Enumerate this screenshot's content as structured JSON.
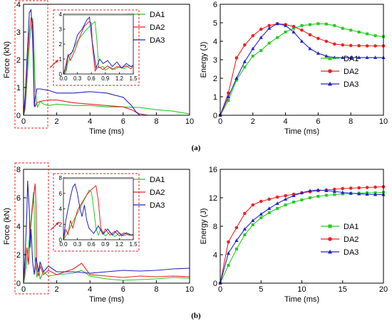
{
  "figure_labels": [
    "(a)",
    "(b)"
  ],
  "colors": {
    "DA1": "#22cc22",
    "DA2": "#ee2222",
    "DA3": "#2222cc",
    "zoom_box": "#ee2222",
    "grid": "#bbbbbb"
  },
  "chart_data": [
    {
      "id": "a-force",
      "type": "line",
      "xlabel": "Time (ms)",
      "ylabel": "Force (kN)",
      "xlim": [
        0,
        10
      ],
      "ylim": [
        0,
        4
      ],
      "xticks": [
        0,
        2,
        4,
        6,
        8,
        10
      ],
      "yticks": [
        0,
        1,
        2,
        3,
        4
      ],
      "legend": [
        "DA1",
        "DA2",
        "DA3"
      ],
      "legend_position": "top-right",
      "series": [
        {
          "name": "DA1",
          "x": [
            0,
            0.1,
            0.25,
            0.4,
            0.55,
            0.6,
            0.7,
            0.78,
            0.85,
            1.0,
            1.2,
            1.5,
            2,
            3,
            4,
            5,
            6,
            7,
            8,
            9,
            10
          ],
          "y": [
            0,
            0.2,
            1.6,
            2.9,
            3.5,
            3.0,
            1.1,
            0.5,
            0.3,
            0.5,
            0.4,
            0.35,
            0.4,
            0.35,
            0.35,
            0.3,
            0.3,
            0.28,
            0.2,
            0.15,
            0.05
          ]
        },
        {
          "name": "DA2",
          "x": [
            0,
            0.1,
            0.25,
            0.35,
            0.45,
            0.55,
            0.6,
            0.65,
            0.7,
            0.8,
            1.0,
            1.5,
            2,
            3,
            4,
            5,
            6,
            6.5,
            7,
            7.5
          ],
          "y": [
            0,
            0.4,
            2.1,
            3.0,
            3.5,
            3.4,
            2.0,
            0.6,
            0.3,
            0.45,
            0.5,
            0.55,
            0.55,
            0.45,
            0.4,
            0.35,
            0.3,
            0.2,
            0.05,
            0
          ]
        },
        {
          "name": "DA3",
          "x": [
            0,
            0.1,
            0.25,
            0.35,
            0.45,
            0.52,
            0.58,
            0.65,
            0.7,
            0.8,
            1.0,
            1.5,
            2,
            3,
            4,
            5,
            6,
            6.5,
            6.8,
            7
          ],
          "y": [
            0,
            0.7,
            2.5,
            3.7,
            3.8,
            3.2,
            2.1,
            0.3,
            0.6,
            0.95,
            0.95,
            0.9,
            0.8,
            0.8,
            0.85,
            0.8,
            0.65,
            0.35,
            0.1,
            0
          ]
        }
      ],
      "inset": {
        "xlim": [
          0,
          1.5
        ],
        "ylim": [
          0,
          4
        ],
        "xticks": [
          0.0,
          0.3,
          0.6,
          0.9,
          1.2,
          1.5
        ],
        "yticks": [
          0,
          1,
          2,
          3,
          4
        ],
        "series": [
          {
            "name": "DA1",
            "x": [
              0,
              0.05,
              0.1,
              0.2,
              0.3,
              0.4,
              0.5,
              0.6,
              0.68,
              0.72,
              0.76,
              0.85,
              0.9,
              1.0,
              1.1,
              1.2,
              1.3,
              1.4,
              1.5
            ],
            "y": [
              0,
              0.1,
              0.8,
              1.6,
              2.2,
              2.6,
              3.0,
              3.3,
              3.5,
              2.2,
              0.4,
              0.5,
              0.25,
              0.45,
              0.3,
              0.5,
              0.35,
              0.55,
              0.45
            ]
          },
          {
            "name": "DA2",
            "x": [
              0,
              0.05,
              0.1,
              0.15,
              0.25,
              0.35,
              0.45,
              0.55,
              0.6,
              0.62,
              0.68,
              0.75,
              0.85,
              0.95,
              1.05,
              1.15,
              1.25,
              1.35,
              1.45,
              1.5
            ],
            "y": [
              0,
              0.6,
              1.3,
              0.9,
              1.6,
              2.5,
              3.2,
              3.5,
              3.4,
              2.0,
              0.2,
              0.5,
              0.3,
              0.55,
              0.3,
              0.5,
              0.4,
              0.55,
              0.35,
              0.55
            ]
          },
          {
            "name": "DA3",
            "x": [
              0,
              0.05,
              0.1,
              0.2,
              0.3,
              0.4,
              0.5,
              0.56,
              0.6,
              0.65,
              0.7,
              0.78,
              0.85,
              0.95,
              1.05,
              1.15,
              1.25,
              1.35,
              1.45,
              1.5
            ],
            "y": [
              0,
              0.3,
              1.2,
              1.5,
              2.6,
              3.0,
              3.6,
              3.8,
              2.6,
              1.5,
              0.4,
              1.0,
              0.7,
              0.9,
              0.5,
              0.8,
              0.4,
              0.7,
              0.5,
              0.6
            ]
          }
        ]
      }
    },
    {
      "id": "a-energy",
      "type": "line",
      "xlabel": "Time (ms)",
      "ylabel": "Energy (J)",
      "xlim": [
        0,
        10
      ],
      "ylim": [
        0,
        6
      ],
      "xticks": [
        0,
        2,
        4,
        6,
        8,
        10
      ],
      "yticks": [
        0,
        1,
        2,
        3,
        4,
        5,
        6
      ],
      "legend": [
        "DA1",
        "DA2",
        "DA3"
      ],
      "legend_position": "lower-right",
      "series": [
        {
          "name": "DA1",
          "x": [
            0,
            0.5,
            1,
            1.5,
            2,
            2.5,
            3,
            3.5,
            4,
            4.5,
            5,
            5.5,
            6,
            6.5,
            7,
            7.5,
            8,
            8.5,
            9,
            9.5,
            10
          ],
          "y": [
            0,
            0.8,
            1.9,
            2.6,
            3.2,
            3.5,
            3.9,
            4.2,
            4.5,
            4.7,
            4.85,
            4.9,
            4.95,
            4.93,
            4.85,
            4.7,
            4.6,
            4.5,
            4.4,
            4.3,
            4.25
          ]
        },
        {
          "name": "DA2",
          "x": [
            0,
            0.5,
            1,
            1.5,
            2,
            2.5,
            3,
            3.5,
            4,
            4.5,
            5,
            5.5,
            6,
            6.5,
            7,
            7.5,
            8,
            8.5,
            9,
            9.5,
            10
          ],
          "y": [
            0,
            1.2,
            3.1,
            3.8,
            4.3,
            4.65,
            4.85,
            4.95,
            4.9,
            4.8,
            4.6,
            4.35,
            4.15,
            4.0,
            3.85,
            3.8,
            3.77,
            3.76,
            3.75,
            3.75,
            3.75
          ]
        },
        {
          "name": "DA3",
          "x": [
            0,
            0.5,
            1,
            1.5,
            2,
            2.5,
            3,
            3.5,
            4,
            4.5,
            5,
            5.5,
            6,
            6.5,
            7,
            7.5,
            8,
            8.5,
            9,
            9.5,
            10
          ],
          "y": [
            0,
            1.0,
            2.0,
            2.9,
            3.6,
            4.2,
            4.7,
            4.95,
            4.85,
            4.5,
            4.0,
            3.6,
            3.35,
            3.2,
            3.12,
            3.12,
            3.12,
            3.12,
            3.12,
            3.12,
            3.12
          ]
        }
      ]
    },
    {
      "id": "b-force",
      "type": "line",
      "xlabel": "Time (ms)",
      "ylabel": "Force (kN)",
      "xlim": [
        0,
        10
      ],
      "ylim": [
        0,
        8
      ],
      "xticks": [
        0,
        2,
        4,
        6,
        8,
        10
      ],
      "yticks": [
        0,
        2,
        4,
        6,
        8
      ],
      "legend": [
        "DA1",
        "DA2",
        "DA3"
      ],
      "legend_position": "top-right",
      "series": [
        {
          "name": "DA1",
          "x": [
            0,
            0.1,
            0.3,
            0.45,
            0.6,
            0.65,
            0.7,
            0.8,
            0.9,
            1.0,
            1.2,
            1.5,
            2,
            3,
            3.5,
            4,
            5,
            6,
            7,
            8,
            9,
            10
          ],
          "y": [
            0,
            0.6,
            2.5,
            4.5,
            6.4,
            5.0,
            1.5,
            0.4,
            1.0,
            0.3,
            0.8,
            0.5,
            0.6,
            0.7,
            0.9,
            0.5,
            0.3,
            0.2,
            0.25,
            0.3,
            0.4,
            0.35
          ]
        },
        {
          "name": "DA2",
          "x": [
            0,
            0.1,
            0.2,
            0.3,
            0.4,
            0.5,
            0.6,
            0.7,
            0.75,
            0.8,
            0.9,
            1.0,
            1.2,
            1.5,
            2,
            3,
            3.5,
            4,
            5,
            6,
            7,
            8,
            9,
            10
          ],
          "y": [
            0,
            1.2,
            2.5,
            1.3,
            3.5,
            4.8,
            6.0,
            7.0,
            5.5,
            1.0,
            0.5,
            1.2,
            0.6,
            0.9,
            0.6,
            1.0,
            1.4,
            0.6,
            0.5,
            0.4,
            0.5,
            0.45,
            0.5,
            0.45
          ]
        },
        {
          "name": "DA3",
          "x": [
            0,
            0.1,
            0.2,
            0.25,
            0.35,
            0.4,
            0.45,
            0.55,
            0.65,
            0.75,
            0.9,
            1.0,
            1.2,
            1.5,
            2,
            3,
            4,
            5,
            6,
            7,
            8,
            9,
            10
          ],
          "y": [
            0,
            2.0,
            5.0,
            7.2,
            5.0,
            2.5,
            3.8,
            1.5,
            0.6,
            1.8,
            0.8,
            1.5,
            0.8,
            1.2,
            0.8,
            0.8,
            0.7,
            0.8,
            0.9,
            0.85,
            0.9,
            1.0,
            1.05
          ]
        }
      ],
      "inset": {
        "xlim": [
          0,
          1.5
        ],
        "ylim": [
          0,
          8
        ],
        "xticks": [
          0.0,
          0.3,
          0.6,
          0.9,
          1.2,
          1.5
        ],
        "yticks": [
          0,
          2,
          4,
          6,
          8
        ],
        "series": [
          {
            "name": "DA1",
            "x": [
              0,
              0.1,
              0.2,
              0.3,
              0.4,
              0.5,
              0.55,
              0.6,
              0.65,
              0.7,
              0.75,
              0.8,
              0.9,
              1.0,
              1.1,
              1.2,
              1.3,
              1.4,
              1.5
            ],
            "y": [
              0,
              1.0,
              2.3,
              3.4,
              4.6,
              5.8,
              6.4,
              6.2,
              4.0,
              1.5,
              0.6,
              1.4,
              0.5,
              1.0,
              0.4,
              0.9,
              0.5,
              0.8,
              0.5
            ]
          },
          {
            "name": "DA2",
            "x": [
              0,
              0.05,
              0.1,
              0.15,
              0.2,
              0.3,
              0.4,
              0.5,
              0.6,
              0.7,
              0.75,
              0.8,
              0.85,
              0.9,
              1.0,
              1.1,
              1.2,
              1.3,
              1.4,
              1.5
            ],
            "y": [
              0,
              1.3,
              0.7,
              2.5,
              1.5,
              3.8,
              4.8,
              5.8,
              6.5,
              7.0,
              5.0,
              1.6,
              0.8,
              1.4,
              0.6,
              1.1,
              0.5,
              0.9,
              0.6,
              0.6
            ]
          },
          {
            "name": "DA3",
            "x": [
              0,
              0.05,
              0.1,
              0.15,
              0.2,
              0.25,
              0.3,
              0.35,
              0.4,
              0.45,
              0.5,
              0.55,
              0.65,
              0.75,
              0.85,
              0.95,
              1.05,
              1.15,
              1.25,
              1.35,
              1.45,
              1.5
            ],
            "y": [
              0,
              2.5,
              4.0,
              5.5,
              6.8,
              7.2,
              6.0,
              4.2,
              3.0,
              4.5,
              2.5,
              1.5,
              0.8,
              1.8,
              0.7,
              1.4,
              0.6,
              1.2,
              0.5,
              0.9,
              0.6,
              0.7
            ]
          }
        ]
      }
    },
    {
      "id": "b-energy",
      "type": "line",
      "xlabel": "Time (ms)",
      "ylabel": "Energy (J)",
      "xlim": [
        0,
        20
      ],
      "ylim": [
        0,
        16
      ],
      "xticks": [
        0,
        5,
        10,
        15,
        20
      ],
      "yticks": [
        0,
        4,
        8,
        12,
        16
      ],
      "legend": [
        "DA1",
        "DA2",
        "DA3"
      ],
      "legend_position": "lower-right",
      "series": [
        {
          "name": "DA1",
          "x": [
            0,
            1,
            2,
            3,
            4,
            5,
            6,
            7,
            8,
            9,
            10,
            11,
            12,
            13,
            14,
            15,
            16,
            17,
            18,
            19,
            20
          ],
          "y": [
            0,
            2.5,
            4.8,
            6.8,
            8.2,
            9.2,
            9.9,
            10.5,
            11.0,
            11.4,
            11.7,
            12.0,
            12.2,
            12.35,
            12.45,
            12.55,
            12.6,
            12.65,
            12.7,
            12.7,
            12.75
          ]
        },
        {
          "name": "DA2",
          "x": [
            0,
            1,
            2,
            3,
            4,
            5,
            6,
            7,
            8,
            9,
            10,
            11,
            12,
            13,
            14,
            15,
            16,
            17,
            18,
            19,
            20
          ],
          "y": [
            0,
            5.8,
            7.8,
            9.8,
            11.0,
            11.5,
            11.8,
            12.1,
            12.3,
            12.5,
            12.7,
            12.85,
            13.0,
            13.1,
            13.2,
            13.3,
            13.35,
            13.4,
            13.45,
            13.5,
            13.55
          ]
        },
        {
          "name": "DA3",
          "x": [
            0,
            1,
            2,
            3,
            4,
            5,
            6,
            7,
            8,
            9,
            10,
            11,
            12,
            13,
            14,
            15,
            16,
            17,
            18,
            19,
            20
          ],
          "y": [
            0,
            4.2,
            6.0,
            7.6,
            8.8,
            9.7,
            10.5,
            11.2,
            11.8,
            12.3,
            12.7,
            13.0,
            13.1,
            13.0,
            12.9,
            12.75,
            12.65,
            12.55,
            12.5,
            12.45,
            12.45
          ]
        }
      ]
    }
  ]
}
